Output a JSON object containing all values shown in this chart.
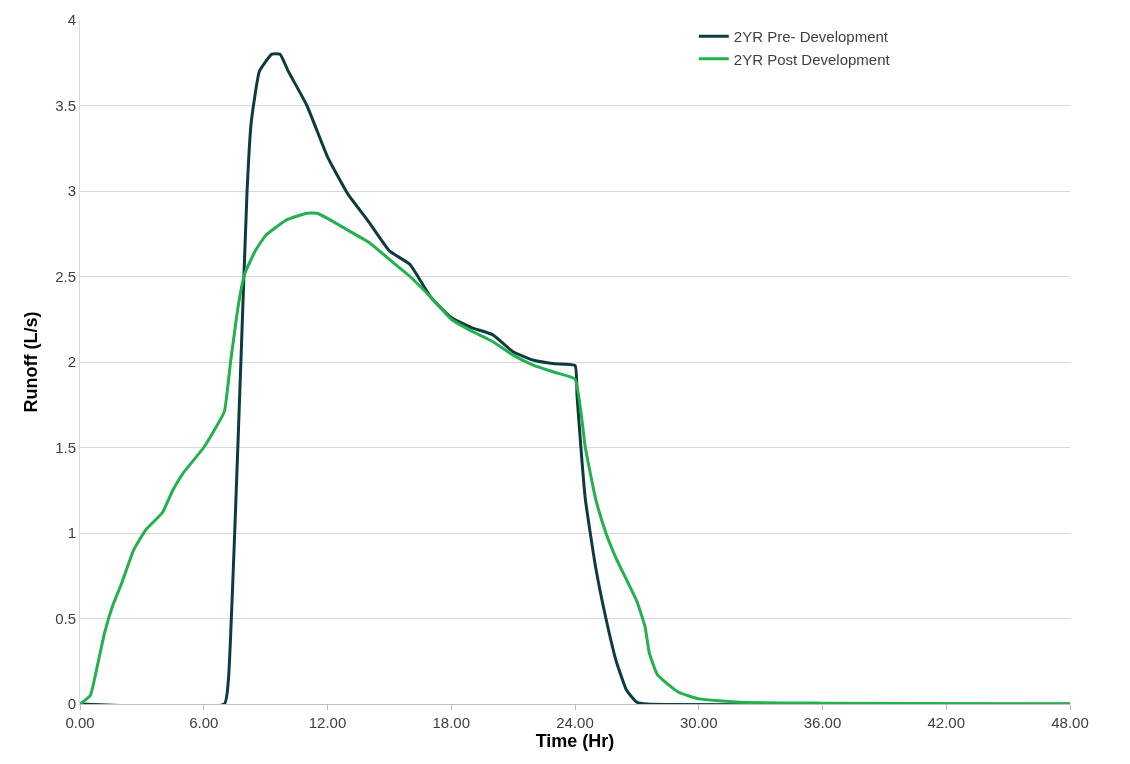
{
  "chart_data": {
    "type": "line",
    "xlabel": "Time (Hr)",
    "ylabel": "Runoff (L/s)",
    "xlim": [
      0,
      48
    ],
    "xticks": [
      {
        "value": 0,
        "label": "0.00"
      },
      {
        "value": 6,
        "label": "6.00"
      },
      {
        "value": 12,
        "label": "12.00"
      },
      {
        "value": 18,
        "label": "18.00"
      },
      {
        "value": 24,
        "label": "24.00"
      },
      {
        "value": 30,
        "label": "30.00"
      },
      {
        "value": 36,
        "label": "36.00"
      },
      {
        "value": 42,
        "label": "42.00"
      },
      {
        "value": 48,
        "label": "48.00"
      }
    ],
    "ylim": [
      0,
      4
    ],
    "yticks": [
      0,
      0.5,
      1,
      1.5,
      2,
      2.5,
      3,
      3.5,
      4
    ],
    "grid": "y",
    "legend": "top right",
    "marker": "none",
    "line_style": "solid",
    "series": [
      {
        "name": "2YR Pre- Development",
        "color": "#0d3b3e",
        "x": [
          0,
          7.0,
          7.2,
          7.5,
          7.8,
          8.1,
          8.3,
          8.7,
          9.3,
          9.7,
          10.1,
          11,
          12,
          13,
          14,
          15,
          16,
          17,
          18,
          19,
          20,
          21,
          22,
          23,
          24,
          24.1,
          24.5,
          25,
          25.5,
          26,
          26.5,
          27,
          27.5,
          48
        ],
        "values": [
          0,
          0,
          0.15,
          1,
          2,
          3,
          3.4,
          3.7,
          3.8,
          3.8,
          3.7,
          3.5,
          3.2,
          2.98,
          2.82,
          2.65,
          2.57,
          2.38,
          2.26,
          2.2,
          2.16,
          2.06,
          2.01,
          1.99,
          1.98,
          1.8,
          1.2,
          0.8,
          0.5,
          0.25,
          0.08,
          0.01,
          0,
          0
        ]
      },
      {
        "name": "2YR Post Development",
        "color": "#22b14c",
        "x": [
          0,
          0.5,
          0.8,
          1.2,
          1.6,
          2,
          2.6,
          3.2,
          4,
          4.5,
          5,
          6,
          6.6,
          7,
          7.3,
          7.7,
          8,
          8.5,
          9,
          10,
          11,
          11.5,
          12,
          13,
          14,
          15,
          16,
          17,
          18,
          19,
          20,
          21,
          22,
          23,
          24,
          24.5,
          25,
          25.5,
          26,
          27,
          27.4,
          27.6,
          28,
          29,
          30,
          32,
          36,
          48
        ],
        "values": [
          0,
          0.05,
          0.2,
          0.42,
          0.58,
          0.7,
          0.9,
          1.02,
          1.12,
          1.25,
          1.35,
          1.5,
          1.62,
          1.71,
          2.0,
          2.35,
          2.52,
          2.65,
          2.74,
          2.83,
          2.87,
          2.87,
          2.84,
          2.77,
          2.7,
          2.6,
          2.5,
          2.38,
          2.25,
          2.18,
          2.12,
          2.04,
          1.98,
          1.94,
          1.9,
          1.5,
          1.2,
          1.0,
          0.85,
          0.6,
          0.45,
          0.3,
          0.17,
          0.07,
          0.03,
          0.01,
          0.005,
          0
        ]
      }
    ]
  }
}
